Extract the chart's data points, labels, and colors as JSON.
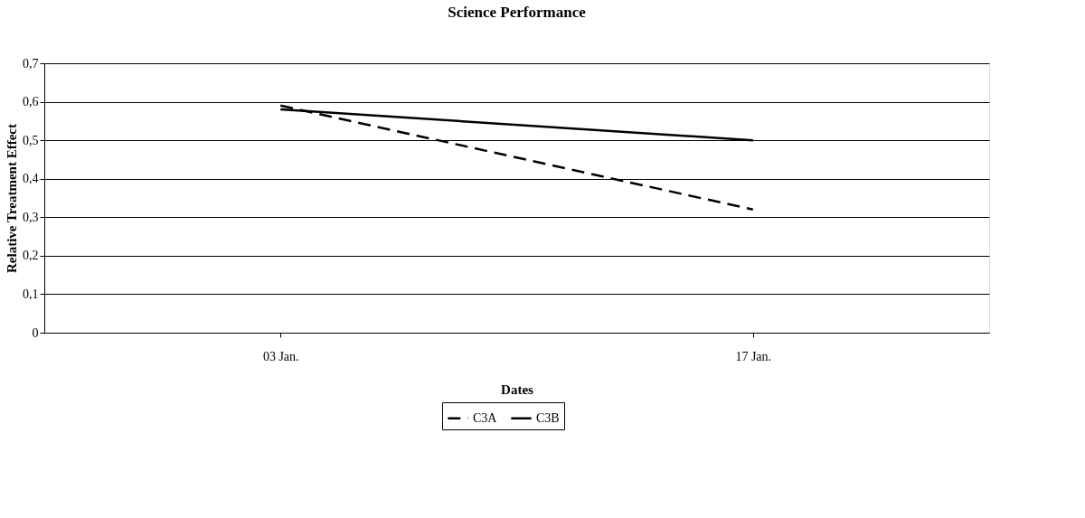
{
  "chart_data": {
    "type": "line",
    "title": "Science Performance",
    "xlabel": "Dates",
    "ylabel": "Relative Treatment Effect",
    "categories": [
      "03 Jan.",
      "17 Jan."
    ],
    "series": [
      {
        "name": "C3A",
        "color": "#000000",
        "line_style": "dashed",
        "values": [
          0.59,
          0.32
        ]
      },
      {
        "name": "C3B",
        "color": "#000000",
        "line_style": "solid",
        "values": [
          0.58,
          0.5
        ]
      }
    ],
    "ylim": [
      0,
      0.7
    ],
    "yticks": [
      {
        "value": 0,
        "label": "0"
      },
      {
        "value": 0.1,
        "label": "0,1"
      },
      {
        "value": 0.2,
        "label": "0,2"
      },
      {
        "value": 0.3,
        "label": "0,3"
      },
      {
        "value": 0.4,
        "label": "0,4"
      },
      {
        "value": 0.5,
        "label": "0,5"
      },
      {
        "value": 0.6,
        "label": "0,6"
      },
      {
        "value": 0.7,
        "label": "0,7"
      }
    ],
    "grid": "y",
    "legend": "bottom",
    "marker": "none"
  }
}
